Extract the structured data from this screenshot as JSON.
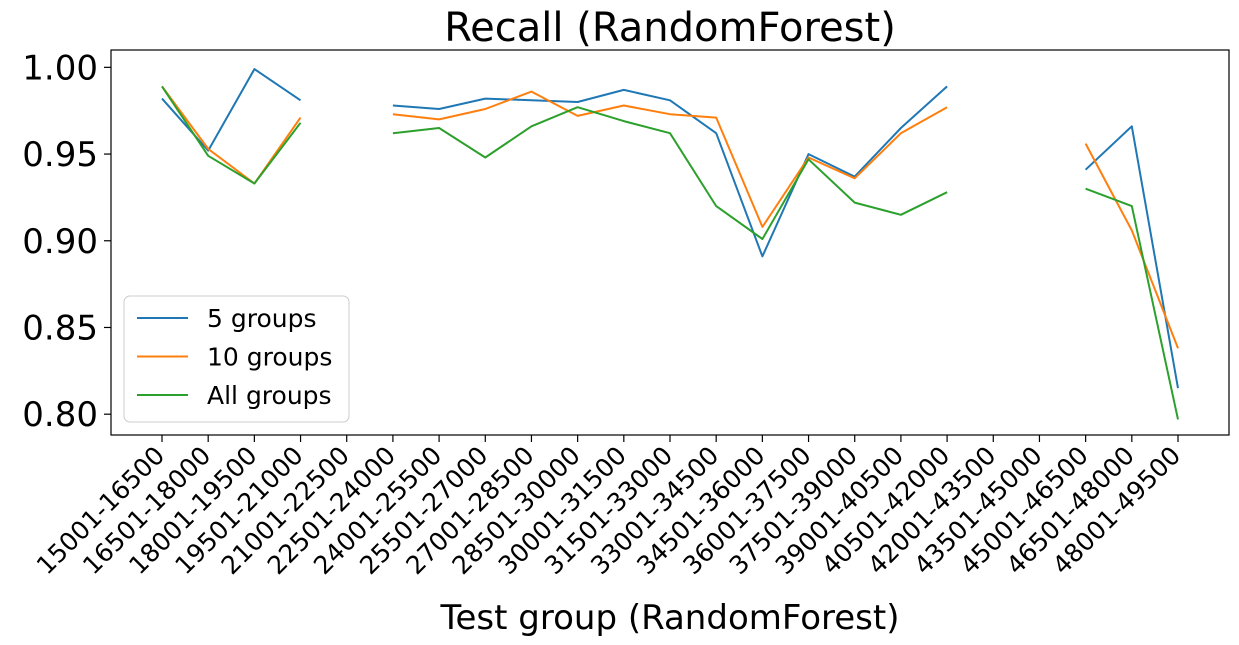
{
  "chart_data": {
    "type": "line",
    "title": "Recall (RandomForest)",
    "xlabel": "Test group (RandomForest)",
    "ylabel": "",
    "categories": [
      "15001-16500",
      "16501-18000",
      "18001-19500",
      "19501-21000",
      "21001-22500",
      "22501-24000",
      "24001-25500",
      "25501-27000",
      "27001-28500",
      "28501-30000",
      "30001-31500",
      "31501-33000",
      "33001-34500",
      "34501-36000",
      "36001-37500",
      "37501-39000",
      "39001-40500",
      "40501-42000",
      "42001-43500",
      "43501-45000",
      "45001-46500",
      "46501-48000",
      "48001-49500"
    ],
    "ylim": [
      0.788,
      1.01
    ],
    "yticks": [
      0.8,
      0.85,
      0.9,
      0.95,
      1.0
    ],
    "ytick_labels": [
      "0.80",
      "0.85",
      "0.90",
      "0.95",
      "1.00"
    ],
    "grid": false,
    "legend_position": "lower-left",
    "series": [
      {
        "name": "5 groups",
        "color": "#1f77b4",
        "values": [
          0.982,
          0.952,
          0.999,
          0.981,
          null,
          0.978,
          0.976,
          0.982,
          0.981,
          0.98,
          0.987,
          0.981,
          0.962,
          0.891,
          0.95,
          0.937,
          0.965,
          0.989,
          null,
          null,
          0.941,
          0.966,
          0.815
        ]
      },
      {
        "name": "10 groups",
        "color": "#ff7f0e",
        "values": [
          0.989,
          0.953,
          0.933,
          0.971,
          null,
          0.973,
          0.97,
          0.976,
          0.986,
          0.972,
          0.978,
          0.973,
          0.971,
          0.908,
          0.948,
          0.936,
          0.962,
          0.977,
          null,
          null,
          0.956,
          0.906,
          0.838
        ]
      },
      {
        "name": "All groups",
        "color": "#2ca02c",
        "values": [
          0.989,
          0.949,
          0.933,
          0.968,
          null,
          0.962,
          0.965,
          0.948,
          0.966,
          0.977,
          0.969,
          0.962,
          0.92,
          0.901,
          0.947,
          0.922,
          0.915,
          0.928,
          null,
          null,
          0.93,
          0.92,
          0.797
        ]
      }
    ]
  }
}
